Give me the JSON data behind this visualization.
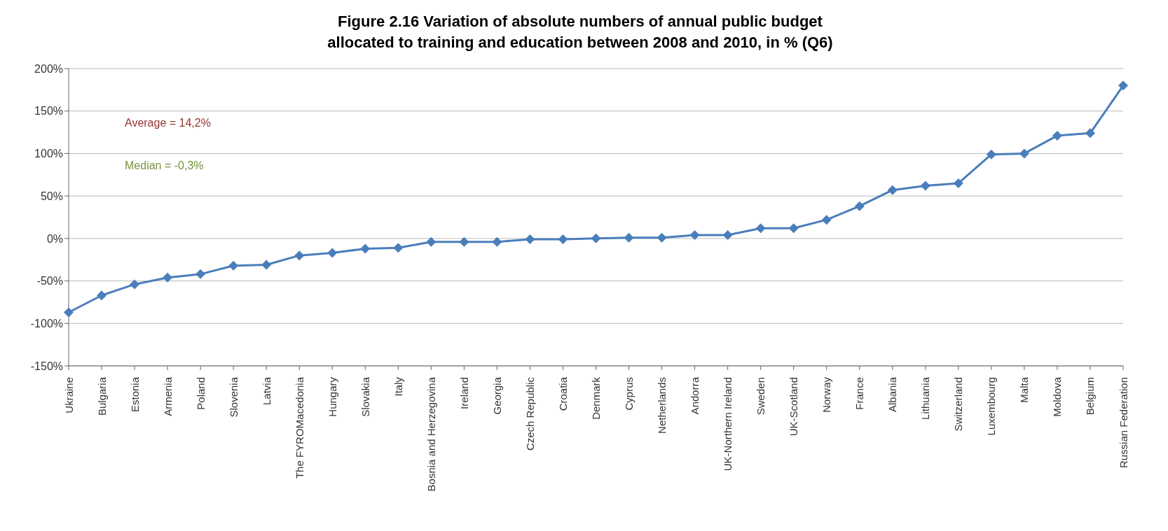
{
  "chart_data": {
    "type": "line",
    "title": "Figure 2.16 Variation of absolute numbers of annual public budget allocated to training and education between 2008 and 2010, in % (Q6)",
    "categories": [
      "Ukraine",
      "Bulgaria",
      "Estonia",
      "Armenia",
      "Poland",
      "Slovenia",
      "Latvia",
      "The FYROMacedonia",
      "Hungary",
      "Slovakia",
      "Italy",
      "Bosnia and Herzegovina",
      "Ireland",
      "Georgia",
      "Czech Republic",
      "Croatia",
      "Denmark",
      "Cyprus",
      "Netherlands",
      "Andorra",
      "UK-Northern Ireland",
      "Sweden",
      "UK-Scotland",
      "Norway",
      "France",
      "Albania",
      "Lithuania",
      "Switzerland",
      "Luxembourg",
      "Malta",
      "Moldova",
      "Belgium",
      "Russian Federation"
    ],
    "series": [
      {
        "color": "#4a7ebb",
        "values": [
          -87,
          -67,
          -54,
          -46,
          -42,
          -32,
          -31,
          -20,
          -17,
          -12,
          -11,
          -4,
          -4,
          -4,
          -1,
          -1,
          0,
          1,
          1,
          4,
          4,
          12,
          12,
          22,
          38,
          57,
          62,
          65,
          99,
          100,
          121,
          124,
          180
        ]
      }
    ],
    "ylim": [
      -150,
      200
    ],
    "yticks": [
      {
        "value": -150,
        "label": "-150%"
      },
      {
        "value": -100,
        "label": "-100%"
      },
      {
        "value": -50,
        "label": "-50%"
      },
      {
        "value": 0,
        "label": "0%"
      },
      {
        "value": 50,
        "label": "50%"
      },
      {
        "value": 100,
        "label": "100%"
      },
      {
        "value": 150,
        "label": "150%"
      },
      {
        "value": 200,
        "label": "200%"
      }
    ],
    "grid": "y",
    "marker": "diamond",
    "line_style": "solid",
    "annotations": [
      "Average = 14,2%",
      "Median = -0,3%"
    ]
  }
}
